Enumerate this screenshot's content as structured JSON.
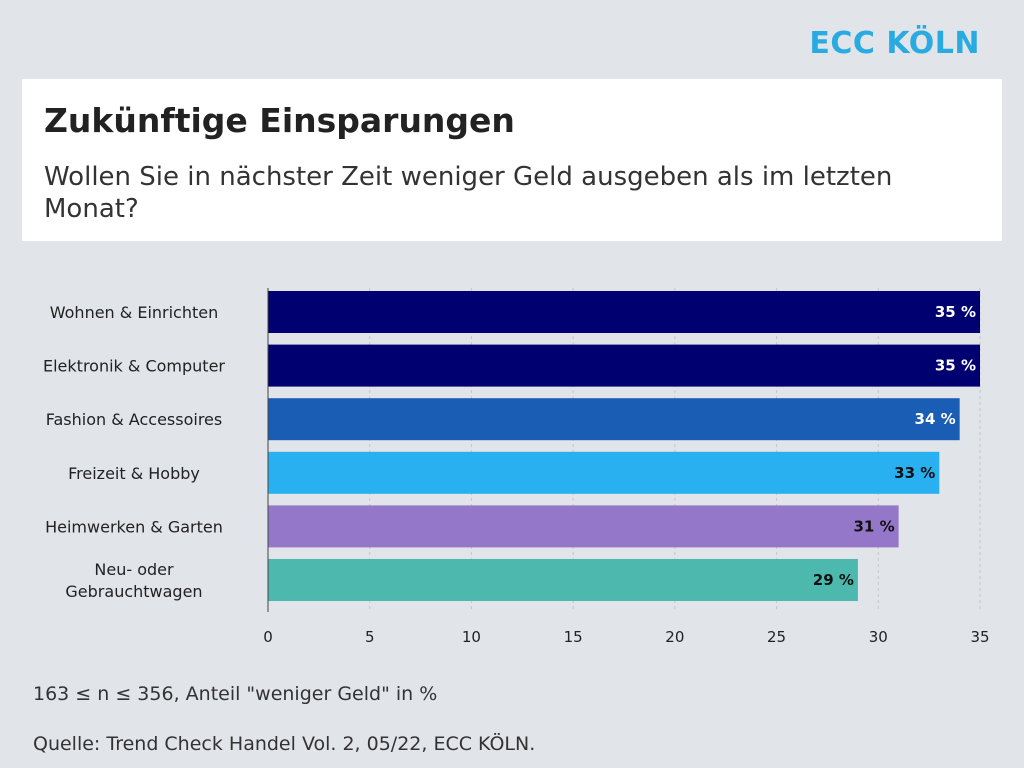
{
  "brand": "ECC KÖLN",
  "title": "Zukünftige Einsparungen",
  "subtitle": "Wollen Sie in nächster Zeit weniger Geld ausgeben als im letzten Monat?",
  "footnote": "163 ≤ n ≤ 356, Anteil \"weniger Geld\" in %",
  "source": "Quelle: Trend Check Handel Vol. 2, 05/22, ECC KÖLN.",
  "chart_data": {
    "type": "bar",
    "orientation": "horizontal",
    "categories": [
      "Wohnen & Einrichten",
      "Elektronik & Computer",
      "Fashion & Accessoires",
      "Freizeit & Hobby",
      "Heimwerken & Garten",
      "Neu- oder Gebrauchtwagen"
    ],
    "category_lines": [
      [
        "Wohnen & Einrichten"
      ],
      [
        "Elektronik & Computer"
      ],
      [
        "Fashion & Accessoires"
      ],
      [
        "Freizeit & Hobby"
      ],
      [
        "Heimwerken & Garten"
      ],
      [
        "Neu- oder",
        "Gebrauchtwagen"
      ]
    ],
    "values": [
      35,
      35,
      34,
      33,
      31,
      29
    ],
    "value_labels": [
      "35 %",
      "35 %",
      "34 %",
      "33 %",
      "31 %",
      "29 %"
    ],
    "colors": [
      "#000070",
      "#000070",
      "#1a5db5",
      "#29b0f0",
      "#9577c9",
      "#4db8ae"
    ],
    "label_colors": [
      "#ffffff",
      "#ffffff",
      "#ffffff",
      "#111111",
      "#111111",
      "#111111"
    ],
    "xticks": [
      0,
      5,
      10,
      15,
      20,
      25,
      30,
      35
    ],
    "xlim": [
      0,
      35
    ],
    "grid": true
  }
}
